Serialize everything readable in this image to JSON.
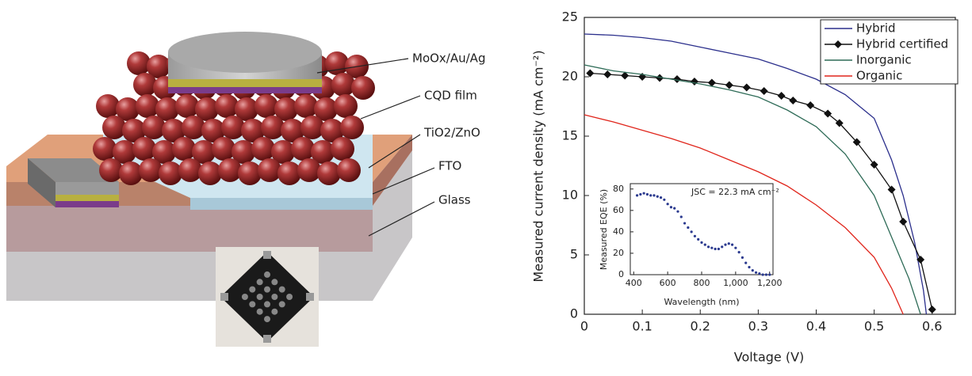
{
  "schematic": {
    "labels": [
      "MoOx/Au/Ag",
      "CQD film",
      "TiO2/ZnO",
      "FTO",
      "Glass"
    ]
  },
  "chart_data": [
    {
      "type": "line",
      "x_label": "Voltage (V)",
      "y_label": "Measured current density (mA cm⁻²)",
      "xlim": [
        0,
        0.64
      ],
      "ylim": [
        0,
        25
      ],
      "xticks": [
        0,
        0.1,
        0.2,
        0.3,
        0.4,
        0.5,
        0.6
      ],
      "yticks": [
        0,
        5,
        10,
        15,
        20,
        25
      ],
      "legend": "upper right",
      "series": [
        {
          "name": "Hybrid",
          "color": "#2b2f8c",
          "x": [
            0,
            0.05,
            0.1,
            0.15,
            0.2,
            0.25,
            0.3,
            0.35,
            0.4,
            0.45,
            0.5,
            0.53,
            0.55,
            0.57,
            0.585,
            0.59
          ],
          "values": [
            23.6,
            23.5,
            23.3,
            23,
            22.5,
            22,
            21.5,
            20.7,
            19.8,
            18.5,
            16.5,
            13,
            10,
            6,
            2,
            0
          ]
        },
        {
          "name": "Hybrid certified",
          "color": "#111111",
          "marker": "diamond",
          "x": [
            0.01,
            0.04,
            0.07,
            0.1,
            0.13,
            0.16,
            0.19,
            0.22,
            0.25,
            0.28,
            0.31,
            0.34,
            0.36,
            0.39,
            0.42,
            0.44,
            0.47,
            0.5,
            0.53,
            0.55,
            0.58,
            0.6
          ],
          "values": [
            20.3,
            20.2,
            20.1,
            20,
            19.9,
            19.8,
            19.6,
            19.5,
            19.3,
            19.1,
            18.8,
            18.4,
            18,
            17.6,
            16.9,
            16.1,
            14.5,
            12.6,
            10.5,
            7.8,
            4.6,
            0.4
          ]
        },
        {
          "name": "Inorganic",
          "color": "#2e6b57",
          "x": [
            0,
            0.05,
            0.1,
            0.15,
            0.2,
            0.25,
            0.3,
            0.35,
            0.4,
            0.45,
            0.5,
            0.53,
            0.56,
            0.58
          ],
          "values": [
            21,
            20.5,
            20.2,
            19.8,
            19.4,
            18.9,
            18.3,
            17.2,
            15.8,
            13.5,
            10,
            6.5,
            3,
            0
          ]
        },
        {
          "name": "Organic",
          "color": "#e0251b",
          "x": [
            0,
            0.05,
            0.1,
            0.15,
            0.2,
            0.25,
            0.3,
            0.35,
            0.4,
            0.45,
            0.5,
            0.53,
            0.55
          ],
          "values": [
            16.8,
            16.2,
            15.5,
            14.8,
            14,
            13,
            12,
            10.8,
            9.2,
            7.3,
            4.8,
            2.2,
            0
          ]
        }
      ]
    },
    {
      "type": "scatter",
      "x_label": "Wavelength (nm)",
      "y_label": "Measured EQE (%)",
      "annotation": "JSC = 22.3 mA cm⁻²",
      "xlim": [
        380,
        1220
      ],
      "ylim": [
        0,
        85
      ],
      "xticks": [
        400,
        600,
        800,
        {
          "value": 1000,
          "label": "1,000"
        },
        {
          "value": 1200,
          "label": "1,200"
        }
      ],
      "yticks": [
        0,
        20,
        40,
        60,
        80
      ],
      "color": "#2b3a8f",
      "x": [
        420,
        440,
        460,
        480,
        500,
        520,
        540,
        560,
        580,
        600,
        620,
        640,
        660,
        680,
        700,
        720,
        740,
        760,
        780,
        800,
        820,
        840,
        860,
        880,
        900,
        920,
        940,
        960,
        980,
        1000,
        1020,
        1040,
        1060,
        1080,
        1100,
        1120,
        1140,
        1160,
        1180,
        1200
      ],
      "values": [
        74,
        75,
        76,
        75,
        74,
        74,
        73,
        72,
        70,
        66,
        63,
        62,
        59,
        54,
        48,
        44,
        40,
        36,
        33,
        30,
        28,
        26,
        25,
        24,
        24,
        26,
        28,
        29,
        28,
        25,
        21,
        16,
        11,
        7,
        4,
        2,
        1,
        0,
        0,
        0
      ]
    }
  ]
}
